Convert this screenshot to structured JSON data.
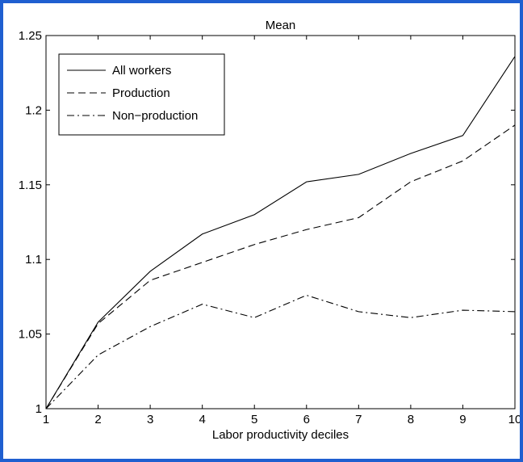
{
  "chart_data": {
    "type": "line",
    "title": "Mean",
    "xlabel": "Labor productivity deciles",
    "ylabel": "",
    "x": [
      1,
      2,
      3,
      4,
      5,
      6,
      7,
      8,
      9,
      10
    ],
    "xlim": [
      1,
      10
    ],
    "ylim": [
      1,
      1.25
    ],
    "x_ticks": [
      "1",
      "2",
      "3",
      "4",
      "5",
      "6",
      "7",
      "8",
      "9",
      "10"
    ],
    "y_ticks": [
      "1",
      "1.05",
      "1.1",
      "1.15",
      "1.2",
      "1.25"
    ],
    "y_tick_values": [
      1,
      1.05,
      1.1,
      1.15,
      1.2,
      1.25
    ],
    "grid": false,
    "legend_position": "top-left",
    "series": [
      {
        "name": "All workers",
        "style": "solid",
        "values": [
          1.0,
          1.058,
          1.092,
          1.117,
          1.13,
          1.152,
          1.157,
          1.171,
          1.183,
          1.236
        ]
      },
      {
        "name": "Production",
        "style": "dashed",
        "values": [
          1.0,
          1.057,
          1.086,
          1.098,
          1.11,
          1.12,
          1.128,
          1.152,
          1.166,
          1.19
        ]
      },
      {
        "name": "Non−production",
        "style": "dashdot",
        "values": [
          1.0,
          1.036,
          1.055,
          1.07,
          1.061,
          1.076,
          1.065,
          1.061,
          1.066,
          1.065
        ]
      }
    ],
    "colors": {
      "line": "#000000",
      "frame_border": "#1f5fd0"
    }
  }
}
